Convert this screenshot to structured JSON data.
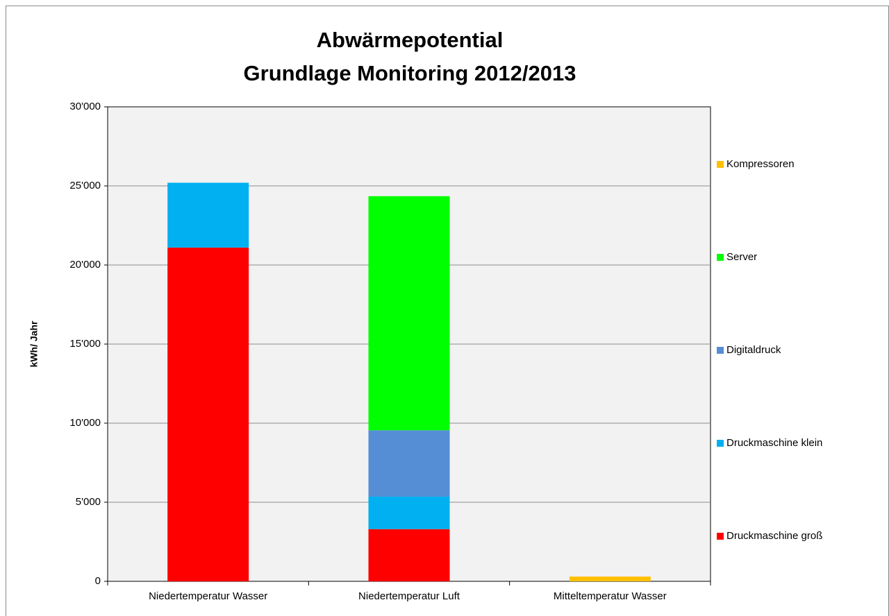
{
  "chart_data": {
    "type": "stacked_bar",
    "title": "Abwärmepotential",
    "subtitle": "Grundlage Monitoring 2012/2013",
    "y_label": "kWh/ Jahr",
    "categories": [
      "Niedertemperatur Wasser",
      "Niedertemperatur Luft",
      "Mitteltemperatur Wasser"
    ],
    "series": [
      {
        "name": "Druckmaschine groß",
        "color": "#ff0000",
        "values": [
          21100,
          3300,
          null
        ]
      },
      {
        "name": "Druckmaschine klein",
        "color": "#00b0f0",
        "values": [
          4100,
          2050,
          null
        ]
      },
      {
        "name": "Digitaldruck",
        "color": "#558ed5",
        "values": [
          null,
          4200,
          null
        ]
      },
      {
        "name": "Server",
        "color": "#00ff00",
        "values": [
          null,
          14800,
          null
        ]
      },
      {
        "name": "Kompressoren",
        "color": "#ffc000",
        "values": [
          null,
          null,
          300
        ]
      }
    ],
    "ylim": [
      0,
      30000
    ],
    "yticks": [
      0,
      {
        "value": 5000,
        "label": "5'000"
      },
      {
        "value": 10000,
        "label": "10'000"
      },
      {
        "value": 15000,
        "label": "15'000"
      },
      {
        "value": 20000,
        "label": "20'000"
      },
      {
        "value": 25000,
        "label": "25'000"
      },
      {
        "value": 30000,
        "label": "30'000"
      }
    ],
    "grid": true,
    "legend": "right"
  }
}
